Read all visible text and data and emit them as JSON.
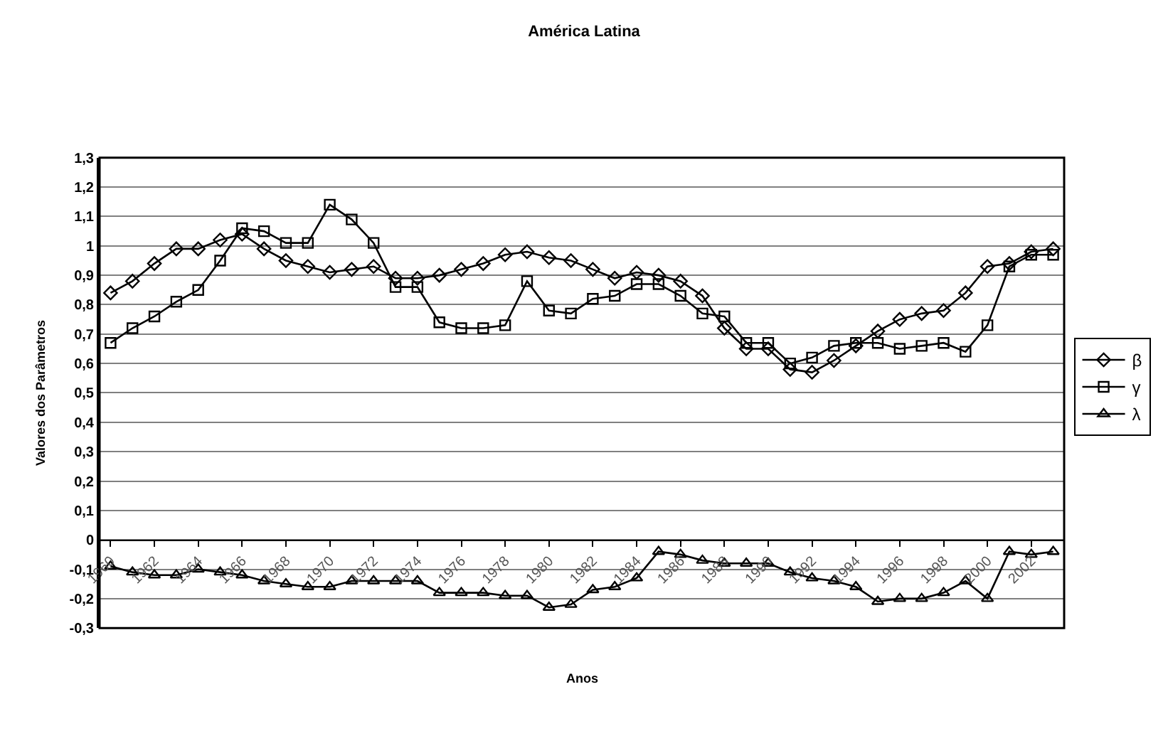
{
  "chart_data": {
    "type": "line",
    "title": "América Latina",
    "xlabel": "Anos",
    "ylabel": "Valores dos Parâmetros",
    "x": [
      1960,
      1961,
      1962,
      1963,
      1964,
      1965,
      1966,
      1967,
      1968,
      1969,
      1970,
      1971,
      1972,
      1973,
      1974,
      1975,
      1976,
      1977,
      1978,
      1979,
      1980,
      1981,
      1982,
      1983,
      1984,
      1985,
      1986,
      1987,
      1988,
      1989,
      1990,
      1991,
      1992,
      1993,
      1994,
      1995,
      1996,
      1997,
      1998,
      1999,
      2000,
      2001,
      2002,
      2003
    ],
    "xlim": [
      1959.5,
      2003.5
    ],
    "xticks": [
      1960,
      1962,
      1964,
      1966,
      1968,
      1970,
      1972,
      1974,
      1976,
      1978,
      1980,
      1982,
      1984,
      1986,
      1988,
      1990,
      1992,
      1994,
      1996,
      1998,
      2000,
      2002
    ],
    "ylim": [
      -0.3,
      1.3
    ],
    "yticks": [
      {
        "value": -0.3,
        "label": "-0,3"
      },
      {
        "value": -0.2,
        "label": "-0,2"
      },
      {
        "value": -0.1,
        "label": "-0,1"
      },
      0,
      {
        "value": 0.1,
        "label": "0,1"
      },
      {
        "value": 0.2,
        "label": "0,2"
      },
      {
        "value": 0.3,
        "label": "0,3"
      },
      {
        "value": 0.4,
        "label": "0,4"
      },
      {
        "value": 0.5,
        "label": "0,5"
      },
      {
        "value": 0.6,
        "label": "0,6"
      },
      {
        "value": 0.7,
        "label": "0,7"
      },
      {
        "value": 0.8,
        "label": "0,8"
      },
      {
        "value": 0.9,
        "label": "0,9"
      },
      1,
      {
        "value": 1.1,
        "label": "1,1"
      },
      {
        "value": 1.2,
        "label": "1,2"
      },
      {
        "value": 1.3,
        "label": "1,3"
      }
    ],
    "grid": "y",
    "legend": "right",
    "series": [
      {
        "name": "β",
        "color": "#000000",
        "marker": "diamond",
        "values": [
          0.84,
          0.88,
          0.94,
          0.99,
          0.99,
          1.02,
          1.04,
          0.99,
          0.95,
          0.93,
          0.91,
          0.92,
          0.93,
          0.89,
          0.89,
          0.9,
          0.92,
          0.94,
          0.97,
          0.98,
          0.96,
          0.95,
          0.92,
          0.89,
          0.91,
          0.9,
          0.88,
          0.83,
          0.72,
          0.65,
          0.65,
          0.58,
          0.57,
          0.61,
          0.66,
          0.71,
          0.75,
          0.77,
          0.78,
          0.84,
          0.93,
          0.94,
          0.98,
          0.99
        ]
      },
      {
        "name": "γ",
        "color": "#000000",
        "marker": "square",
        "values": [
          0.67,
          0.72,
          0.76,
          0.81,
          0.85,
          0.95,
          1.06,
          1.05,
          1.01,
          1.01,
          1.14,
          1.09,
          1.01,
          0.86,
          0.86,
          0.74,
          0.72,
          0.72,
          0.73,
          0.88,
          0.78,
          0.77,
          0.82,
          0.83,
          0.87,
          0.87,
          0.83,
          0.77,
          0.76,
          0.67,
          0.67,
          0.6,
          0.62,
          0.66,
          0.67,
          0.67,
          0.65,
          0.66,
          0.67,
          0.64,
          0.73,
          0.93,
          0.97,
          0.97
        ]
      },
      {
        "name": "λ",
        "color": "#000000",
        "marker": "triangle",
        "values": [
          -0.09,
          -0.11,
          -0.12,
          -0.12,
          -0.1,
          -0.11,
          -0.12,
          -0.14,
          -0.15,
          -0.16,
          -0.16,
          -0.14,
          -0.14,
          -0.14,
          -0.14,
          -0.18,
          -0.18,
          -0.18,
          -0.19,
          -0.19,
          -0.23,
          -0.22,
          -0.17,
          -0.16,
          -0.13,
          -0.04,
          -0.05,
          -0.07,
          -0.08,
          -0.08,
          -0.08,
          -0.11,
          -0.13,
          -0.14,
          -0.16,
          -0.21,
          -0.2,
          -0.2,
          -0.18,
          -0.14,
          -0.2,
          -0.04,
          -0.05,
          -0.04
        ]
      }
    ]
  }
}
